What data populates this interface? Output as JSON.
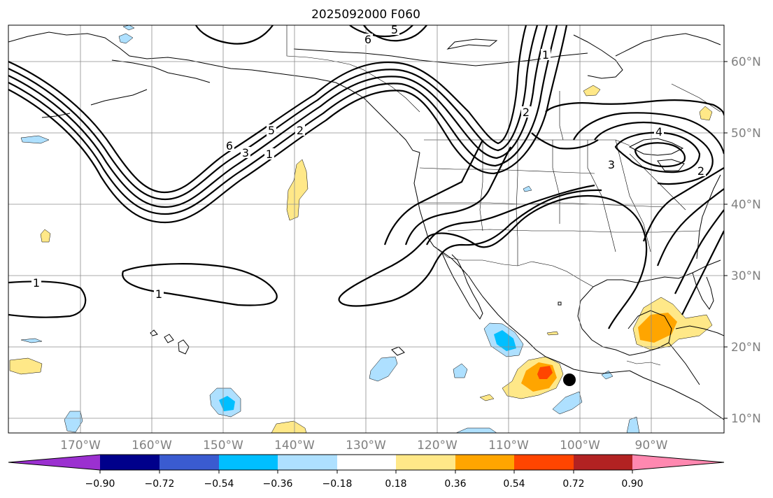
{
  "title": "2025092000 F060",
  "longitude_labels": [
    "170°W",
    "160°W",
    "150°W",
    "140°W",
    "130°W",
    "120°W",
    "110°W",
    "100°W",
    "90°W"
  ],
  "latitude_labels": [
    "60°N",
    "50°N",
    "40°N",
    "30°N",
    "20°N",
    "10°N"
  ],
  "colorbar": {
    "colors": [
      "#9b30d0",
      "#00008b",
      "#3a5bd0",
      "#00bfff",
      "#aee0ff",
      "#ffffff",
      "#ffe888",
      "#ffa500",
      "#ff4500",
      "#b22222",
      "#ff88b0"
    ],
    "tick_labels": [
      "−0.90",
      "−0.72",
      "−0.54",
      "−0.36",
      "−0.18",
      "0.18",
      "0.36",
      "0.54",
      "0.72",
      "0.90"
    ]
  },
  "contour_labels": [
    "6",
    "5",
    "1",
    "2",
    "6",
    "3",
    "5",
    "1",
    "2",
    "4",
    "3",
    "2",
    "1",
    "1"
  ],
  "marker": "storm-position"
}
